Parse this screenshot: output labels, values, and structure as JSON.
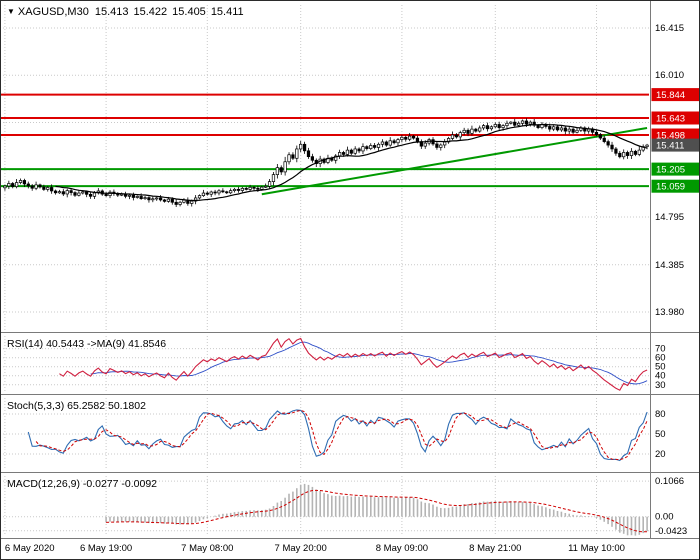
{
  "window": {
    "bg": "#ffffff",
    "border": "#2b2b2b",
    "grid_color": "#c9c9c9",
    "separator_color": "#7a7a7a",
    "axis_text_color": "#000000"
  },
  "quote": {
    "symbol": "XAGUSD,M30",
    "open": "15.413",
    "high": "15.422",
    "low": "15.405",
    "close": "15.411",
    "dropdown_icon": "▼"
  },
  "time_axis": {
    "labels": [
      {
        "bar": 0,
        "label": "6 May 2020"
      },
      {
        "bar": 26,
        "label": "6 May 19:00"
      },
      {
        "bar": 52,
        "label": "7 May 08:00"
      },
      {
        "bar": 76,
        "label": "7 May 20:00"
      },
      {
        "bar": 102,
        "label": "8 May 09:00"
      },
      {
        "bar": 126,
        "label": "8 May 21:00"
      },
      {
        "bar": 152,
        "label": "11 May 10:00"
      }
    ]
  },
  "chart_data": [
    {
      "type": "candlestick",
      "panel": "price",
      "symbol": "XAGUSD",
      "timeframe": "M30",
      "ohlc_display": {
        "open": 15.413,
        "high": 15.422,
        "low": 15.405,
        "close": 15.411
      },
      "ylim": [
        13.826,
        16.612
      ],
      "y_ticks": [
        {
          "value": 16.415,
          "label": "16.415"
        },
        {
          "value": 16.01,
          "label": "16.010"
        },
        {
          "value": 14.795,
          "label": "14.795"
        },
        {
          "value": 14.385,
          "label": "14.385"
        },
        {
          "value": 13.98,
          "label": "13.980"
        }
      ],
      "extra_grid": [
        15.605,
        15.2
      ],
      "first_open": 15.045,
      "closes": [
        15.06,
        15.082,
        15.055,
        15.09,
        15.108,
        15.078,
        15.062,
        15.041,
        15.07,
        15.052,
        15.031,
        15.048,
        15.018,
        15.002,
        15.012,
        14.992,
        15.021,
        15.004,
        14.981,
        15.0,
        15.01,
        14.989,
        14.972,
        15.001,
        15.018,
        14.991,
        14.978,
        15.008,
        14.996,
        14.982,
        14.99,
        14.972,
        14.981,
        14.962,
        14.971,
        14.952,
        14.961,
        14.942,
        14.951,
        14.958,
        14.941,
        14.929,
        14.948,
        14.921,
        14.902,
        14.921,
        14.939,
        14.911,
        14.931,
        14.958,
        14.978,
        15.0,
        14.99,
        15.009,
        15.001,
        15.019,
        15.011,
        15.002,
        15.021,
        15.032,
        15.022,
        15.04,
        15.031,
        15.049,
        15.041,
        15.032,
        15.051,
        15.058,
        15.098,
        15.158,
        15.218,
        15.181,
        15.268,
        15.328,
        15.298,
        15.378,
        15.418,
        15.362,
        15.312,
        15.281,
        15.252,
        15.291,
        15.262,
        15.298,
        15.281,
        15.318,
        15.348,
        15.331,
        15.368,
        15.341,
        15.378,
        15.361,
        15.398,
        15.381,
        15.408,
        15.391,
        15.418,
        15.438,
        15.411,
        15.448,
        15.431,
        15.458,
        15.478,
        15.461,
        15.488,
        15.471,
        15.441,
        15.402,
        15.428,
        15.458,
        15.421,
        15.391,
        15.412,
        15.438,
        15.468,
        15.498,
        15.481,
        15.518,
        15.538,
        15.511,
        15.548,
        15.531,
        15.558,
        15.578,
        15.551,
        15.568,
        15.588,
        15.561,
        15.578,
        15.598,
        15.608,
        15.581,
        15.598,
        15.618,
        15.591,
        15.608,
        15.581,
        15.561,
        15.588,
        15.571,
        15.548,
        15.568,
        15.541,
        15.558,
        15.531,
        15.548,
        15.521,
        15.538,
        15.558,
        15.531,
        15.548,
        15.521,
        15.501,
        15.471,
        15.441,
        15.411,
        15.378,
        15.341,
        15.311,
        15.348,
        15.321,
        15.358,
        15.331,
        15.368,
        15.398,
        15.411
      ],
      "wick_pattern": [
        0.012,
        0.026,
        0.008,
        0.031,
        0.017,
        0.01,
        0.023,
        0.014,
        0.029,
        0.009,
        0.02,
        0.013,
        0.027,
        0.011,
        0.018,
        0.024
      ],
      "ma": {
        "type": "sma",
        "period": 14,
        "color": "#000000"
      },
      "hlines": [
        {
          "value": 15.844,
          "label": "15.844",
          "color": "#dd0000"
        },
        {
          "value": 15.643,
          "label": "15.643",
          "color": "#dd0000"
        },
        {
          "value": 15.498,
          "label": "15.498",
          "color": "#dd0000"
        },
        {
          "value": 15.205,
          "label": "15.205",
          "color": "#009900"
        },
        {
          "value": 15.059,
          "label": "15.059",
          "color": "#009900"
        }
      ],
      "trendline": {
        "from_bar": 66,
        "from_value": 14.99,
        "to_bar": 165,
        "to_value": 15.558,
        "color": "#009900",
        "width": 2
      },
      "current_price": {
        "value": 15.411,
        "label": "15.411",
        "badge_color": "#4f4f4f"
      },
      "candle_colors": {
        "up_fill": "#ffffff",
        "down_fill": "#000000",
        "outline": "#000000"
      }
    },
    {
      "type": "line",
      "panel": "indicator",
      "id": "rsi",
      "title": "RSI(14) 40.5443  ->MA(9) 41.8546",
      "params": {
        "period": 14,
        "ma_period": 9
      },
      "ylim": [
        22,
        84
      ],
      "levels": [
        {
          "value": 70,
          "label": "70"
        },
        {
          "value": 60,
          "label": "60"
        },
        {
          "value": 50,
          "label": "50"
        },
        {
          "value": 40,
          "label": "40"
        },
        {
          "value": 30,
          "label": "30"
        }
      ],
      "colors": {
        "main": "#d02040",
        "signal": "#3050c8"
      },
      "current": {
        "main": 40.5443,
        "signal": 41.8546
      }
    },
    {
      "type": "line",
      "panel": "indicator",
      "id": "stoch",
      "title": "Stoch(5,3,3) 65.2582 50.1802",
      "params": {
        "k": 5,
        "d": 3,
        "slowing": 3
      },
      "ylim": [
        -4,
        104
      ],
      "levels": [
        {
          "value": 80,
          "label": "80"
        },
        {
          "value": 50,
          "label": "50"
        },
        {
          "value": 20,
          "label": "20"
        }
      ],
      "colors": {
        "main": "#2f6db3",
        "signal": "#d00000"
      },
      "current": {
        "main": 65.2582,
        "signal": 50.1802
      }
    },
    {
      "type": "histogram",
      "panel": "indicator",
      "id": "macd",
      "title": "MACD(12,26,9) -0.0277 -0.0092",
      "params": {
        "fast": 12,
        "slow": 26,
        "signal": 9
      },
      "ylim": [
        -0.058,
        0.122
      ],
      "levels": [
        {
          "value": 0.1066,
          "label": "0.1066"
        },
        {
          "value": 0,
          "label": "0.00"
        },
        {
          "value": -0.0423,
          "label": "-0.0423"
        }
      ],
      "colors": {
        "histogram": "#b4b4b4",
        "signal": "#d00000"
      },
      "current": {
        "main": -0.0277,
        "signal": -0.0092
      }
    }
  ]
}
